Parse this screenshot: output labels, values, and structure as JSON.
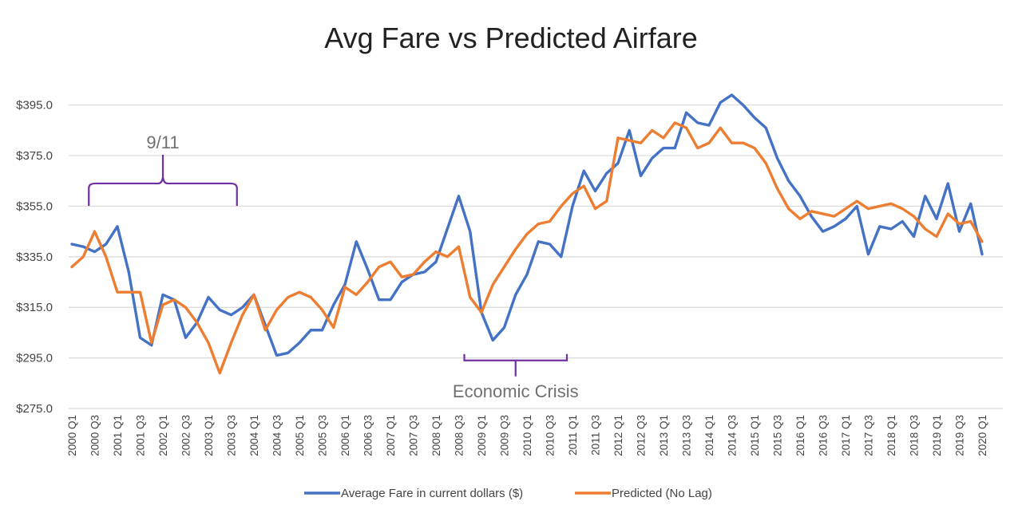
{
  "chart_data": {
    "type": "line",
    "title": "Avg Fare vs Predicted Airfare",
    "xlabel": "",
    "ylabel": "",
    "ylim": [
      275,
      405
    ],
    "yticks": [
      275,
      295,
      315,
      335,
      355,
      375,
      395
    ],
    "ytick_labels": [
      "$275.0",
      "$295.0",
      "$315.0",
      "$335.0",
      "$355.0",
      "$375.0",
      "$395.0"
    ],
    "grid": true,
    "legend_position": "bottom",
    "x": [
      "2000 Q1",
      "2000 Q2",
      "2000 Q3",
      "2000 Q4",
      "2001 Q1",
      "2001 Q2",
      "2001 Q3",
      "2001 Q4",
      "2002 Q1",
      "2002 Q2",
      "2002 Q3",
      "2002 Q4",
      "2003 Q1",
      "2003 Q2",
      "2003 Q3",
      "2003 Q4",
      "2004 Q1",
      "2004 Q2",
      "2004 Q3",
      "2004 Q4",
      "2005 Q1",
      "2005 Q2",
      "2005 Q3",
      "2005 Q4",
      "2006 Q1",
      "2006 Q2",
      "2006 Q3",
      "2006 Q4",
      "2007 Q1",
      "2007 Q2",
      "2007 Q3",
      "2007 Q4",
      "2008 Q1",
      "2008 Q2",
      "2008 Q3",
      "2008 Q4",
      "2009 Q1",
      "2009 Q2",
      "2009 Q3",
      "2009 Q4",
      "2010 Q1",
      "2010 Q2",
      "2010 Q3",
      "2010 Q4",
      "2011 Q1",
      "2011 Q2",
      "2011 Q3",
      "2011 Q4",
      "2012 Q1",
      "2012 Q2",
      "2012 Q3",
      "2012 Q4",
      "2013 Q1",
      "2013 Q2",
      "2013 Q3",
      "2013 Q4",
      "2014 Q1",
      "2014 Q2",
      "2014 Q3",
      "2014 Q4",
      "2015 Q1",
      "2015 Q2",
      "2015 Q3",
      "2015 Q4",
      "2016 Q1",
      "2016 Q2",
      "2016 Q3",
      "2016 Q4",
      "2017 Q1",
      "2017 Q2",
      "2017 Q3",
      "2017 Q4",
      "2018 Q1",
      "2018 Q2",
      "2018 Q3",
      "2018 Q4",
      "2019 Q1",
      "2019 Q2",
      "2019 Q3",
      "2019 Q4",
      "2020 Q1"
    ],
    "xtick_labels": [
      "2000 Q1",
      "2000 Q3",
      "2001 Q1",
      "2001 Q3",
      "2002 Q1",
      "2002 Q3",
      "2003 Q1",
      "2003 Q3",
      "2004 Q1",
      "2004 Q3",
      "2005 Q1",
      "2005 Q3",
      "2006 Q1",
      "2006 Q3",
      "2007 Q1",
      "2007 Q3",
      "2008 Q1",
      "2008 Q3",
      "2009 Q1",
      "2009 Q3",
      "2010 Q1",
      "2010 Q3",
      "2011 Q1",
      "2011 Q3",
      "2012 Q1",
      "2012 Q3",
      "2013 Q1",
      "2013 Q3",
      "2014 Q1",
      "2014 Q3",
      "2015 Q1",
      "2015 Q3",
      "2016 Q1",
      "2016 Q3",
      "2017 Q1",
      "2017 Q3",
      "2018 Q1",
      "2018 Q3",
      "2019 Q1",
      "2019 Q3",
      "2020 Q1"
    ],
    "series": [
      {
        "name": "Average Fare in current dollars ($)",
        "color": "#4472C4",
        "values": [
          340,
          339,
          337,
          340,
          347,
          329,
          303,
          300,
          320,
          318,
          303,
          309,
          319,
          314,
          312,
          315,
          320,
          308,
          296,
          297,
          301,
          306,
          306,
          316,
          324,
          341,
          330,
          318,
          318,
          325,
          328,
          329,
          333,
          346,
          359,
          345,
          313,
          302,
          307,
          320,
          328,
          341,
          340,
          335,
          355,
          369,
          361,
          368,
          372,
          385,
          367,
          374,
          378,
          378,
          392,
          388,
          387,
          396,
          399,
          395,
          390,
          386,
          374,
          365,
          359,
          351,
          345,
          347,
          350,
          355,
          336,
          347,
          346,
          349,
          343,
          359,
          350,
          364,
          345,
          356,
          336
        ]
      },
      {
        "name": "Predicted (No Lag)",
        "color": "#ED7D31",
        "values": [
          331,
          335,
          345,
          335,
          321,
          321,
          321,
          301,
          316,
          318,
          315,
          309,
          301,
          289,
          301,
          312,
          320,
          306,
          314,
          319,
          321,
          319,
          314,
          307,
          323,
          320,
          325,
          331,
          333,
          327,
          328,
          333,
          337,
          335,
          339,
          319,
          313,
          324,
          331,
          338,
          344,
          348,
          349,
          355,
          360,
          363,
          354,
          357,
          382,
          381,
          380,
          385,
          382,
          388,
          386,
          378,
          380,
          386,
          380,
          380,
          378,
          372,
          362,
          354,
          350,
          353,
          352,
          351,
          354,
          357,
          354,
          355,
          356,
          354,
          351,
          346,
          343,
          352,
          348,
          349,
          341
        ]
      }
    ],
    "annotations": [
      {
        "label": "9/11",
        "from": "2000 Q2",
        "to": "2003 Q4",
        "near_value": 364,
        "position": "above"
      },
      {
        "label": "Economic Crisis",
        "from": "2008 Q3",
        "to": "2011 Q1",
        "near_value": 294,
        "position": "below"
      }
    ],
    "annotation_color": "#7030A0",
    "gridline_color": "#D9D9D9"
  }
}
